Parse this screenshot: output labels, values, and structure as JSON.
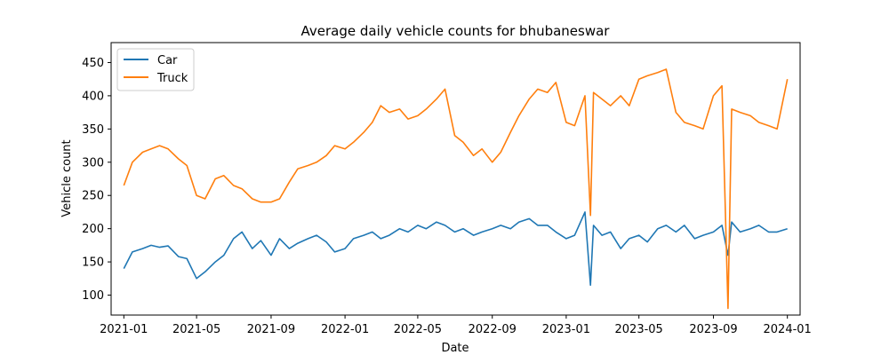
{
  "chart_data": {
    "type": "line",
    "title": "Average daily vehicle counts for bhubaneswar",
    "xlabel": "Date",
    "ylabel": "Vehicle count",
    "xlim": [
      "2020-12-11",
      "2024-01-22"
    ],
    "ylim": [
      70,
      480
    ],
    "x_ticks": [
      "2021-01",
      "2021-05",
      "2021-09",
      "2022-01",
      "2022-05",
      "2022-09",
      "2023-01",
      "2023-05",
      "2023-09",
      "2024-01"
    ],
    "y_ticks": [
      100,
      150,
      200,
      250,
      300,
      350,
      400,
      450
    ],
    "grid": false,
    "legend_location": "upper left",
    "series": [
      {
        "name": "Car",
        "color": "#1f77b4",
        "x": [
          "2021-01-01",
          "2021-01-15",
          "2021-02-01",
          "2021-02-15",
          "2021-03-01",
          "2021-03-15",
          "2021-04-01",
          "2021-04-15",
          "2021-05-01",
          "2021-05-15",
          "2021-06-01",
          "2021-06-15",
          "2021-07-01",
          "2021-07-15",
          "2021-08-01",
          "2021-08-15",
          "2021-09-01",
          "2021-09-15",
          "2021-10-01",
          "2021-10-15",
          "2021-11-01",
          "2021-11-15",
          "2021-12-01",
          "2021-12-15",
          "2022-01-01",
          "2022-01-15",
          "2022-02-01",
          "2022-02-15",
          "2022-03-01",
          "2022-03-15",
          "2022-04-01",
          "2022-04-15",
          "2022-05-01",
          "2022-05-15",
          "2022-06-01",
          "2022-06-15",
          "2022-07-01",
          "2022-07-15",
          "2022-08-01",
          "2022-08-15",
          "2022-09-01",
          "2022-09-15",
          "2022-10-01",
          "2022-10-15",
          "2022-11-01",
          "2022-11-15",
          "2022-12-01",
          "2022-12-15",
          "2023-01-01",
          "2023-01-15",
          "2023-02-01",
          "2023-02-10",
          "2023-02-15",
          "2023-03-01",
          "2023-03-15",
          "2023-04-01",
          "2023-04-15",
          "2023-05-01",
          "2023-05-15",
          "2023-06-01",
          "2023-06-15",
          "2023-07-01",
          "2023-07-15",
          "2023-08-01",
          "2023-08-15",
          "2023-09-01",
          "2023-09-15",
          "2023-09-25",
          "2023-10-01",
          "2023-10-15",
          "2023-11-01",
          "2023-11-15",
          "2023-12-01",
          "2023-12-15",
          "2024-01-01"
        ],
        "values": [
          140,
          165,
          170,
          175,
          172,
          174,
          158,
          155,
          125,
          135,
          150,
          160,
          185,
          195,
          170,
          182,
          160,
          185,
          170,
          178,
          185,
          190,
          180,
          165,
          170,
          185,
          190,
          195,
          185,
          190,
          200,
          195,
          205,
          200,
          210,
          205,
          195,
          200,
          190,
          195,
          200,
          205,
          200,
          210,
          215,
          205,
          205,
          195,
          185,
          190,
          225,
          115,
          205,
          190,
          195,
          170,
          185,
          190,
          180,
          200,
          205,
          195,
          205,
          185,
          190,
          195,
          205,
          160,
          210,
          195,
          200,
          205,
          195,
          195,
          200
        ]
      },
      {
        "name": "Truck",
        "color": "#ff7f0e",
        "x": [
          "2021-01-01",
          "2021-01-15",
          "2021-02-01",
          "2021-02-15",
          "2021-03-01",
          "2021-03-15",
          "2021-04-01",
          "2021-04-15",
          "2021-05-01",
          "2021-05-15",
          "2021-06-01",
          "2021-06-15",
          "2021-07-01",
          "2021-07-15",
          "2021-08-01",
          "2021-08-15",
          "2021-09-01",
          "2021-09-15",
          "2021-10-01",
          "2021-10-15",
          "2021-11-01",
          "2021-11-15",
          "2021-12-01",
          "2021-12-15",
          "2022-01-01",
          "2022-01-15",
          "2022-02-01",
          "2022-02-15",
          "2022-03-01",
          "2022-03-15",
          "2022-04-01",
          "2022-04-15",
          "2022-05-01",
          "2022-05-15",
          "2022-06-01",
          "2022-06-15",
          "2022-07-01",
          "2022-07-15",
          "2022-08-01",
          "2022-08-15",
          "2022-09-01",
          "2022-09-15",
          "2022-10-01",
          "2022-10-15",
          "2022-11-01",
          "2022-11-15",
          "2022-12-01",
          "2022-12-15",
          "2023-01-01",
          "2023-01-15",
          "2023-02-01",
          "2023-02-10",
          "2023-02-15",
          "2023-03-01",
          "2023-03-15",
          "2023-04-01",
          "2023-04-15",
          "2023-05-01",
          "2023-05-15",
          "2023-06-01",
          "2023-06-15",
          "2023-07-01",
          "2023-07-15",
          "2023-08-01",
          "2023-08-15",
          "2023-09-01",
          "2023-09-15",
          "2023-09-25",
          "2023-10-01",
          "2023-10-15",
          "2023-11-01",
          "2023-11-15",
          "2023-12-01",
          "2023-12-15",
          "2024-01-01"
        ],
        "values": [
          265,
          300,
          315,
          320,
          325,
          320,
          305,
          295,
          250,
          245,
          275,
          280,
          265,
          260,
          245,
          240,
          240,
          245,
          270,
          290,
          295,
          300,
          310,
          325,
          320,
          330,
          345,
          360,
          385,
          375,
          380,
          365,
          370,
          380,
          395,
          410,
          340,
          330,
          310,
          320,
          300,
          315,
          345,
          370,
          395,
          410,
          405,
          420,
          360,
          355,
          400,
          220,
          405,
          395,
          385,
          400,
          385,
          425,
          430,
          435,
          440,
          375,
          360,
          355,
          350,
          400,
          415,
          80,
          380,
          375,
          370,
          360,
          355,
          350,
          425
        ]
      }
    ]
  }
}
